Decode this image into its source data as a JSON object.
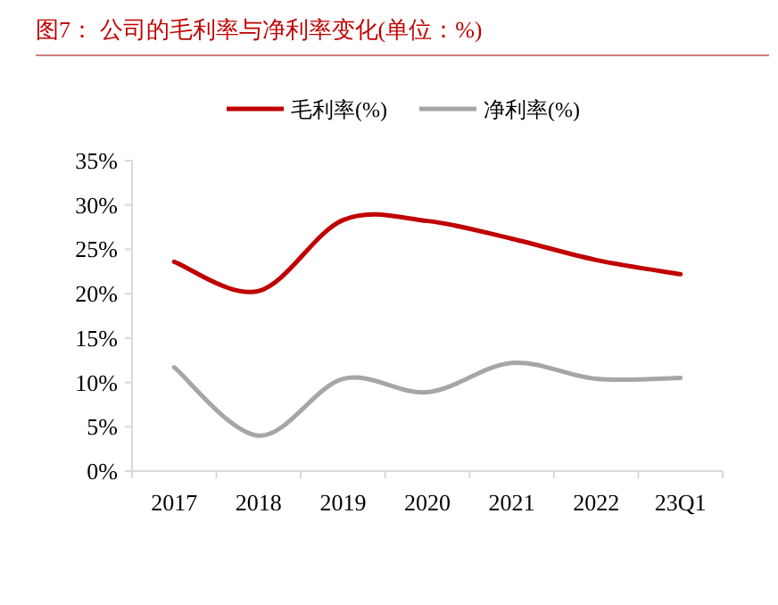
{
  "chart_data": {
    "type": "line",
    "title": "图7：  公司的毛利率与净利率变化(单位：%)",
    "categories": [
      "2017",
      "2018",
      "2019",
      "2020",
      "2021",
      "2022",
      "23Q1"
    ],
    "series": [
      {
        "name": "毛利率(%)",
        "color": "#c00000",
        "values": [
          23.6,
          20.3,
          28.3,
          28.2,
          26.2,
          23.8,
          22.2
        ]
      },
      {
        "name": "净利率(%)",
        "color": "#a6a6a6",
        "values": [
          11.7,
          4.0,
          10.4,
          8.9,
          12.2,
          10.4,
          10.5
        ]
      }
    ],
    "ylim": [
      0,
      35
    ],
    "yticks": [
      {
        "value": 0,
        "label": "0%"
      },
      {
        "value": 5,
        "label": "5%"
      },
      {
        "value": 10,
        "label": "10%"
      },
      {
        "value": 15,
        "label": "15%"
      },
      {
        "value": 20,
        "label": "20%"
      },
      {
        "value": 25,
        "label": "25%"
      },
      {
        "value": 30,
        "label": "30%"
      },
      {
        "value": 35,
        "label": "35%"
      }
    ],
    "legend": "top",
    "grid": false,
    "marker": "none",
    "line_style": "solid"
  }
}
